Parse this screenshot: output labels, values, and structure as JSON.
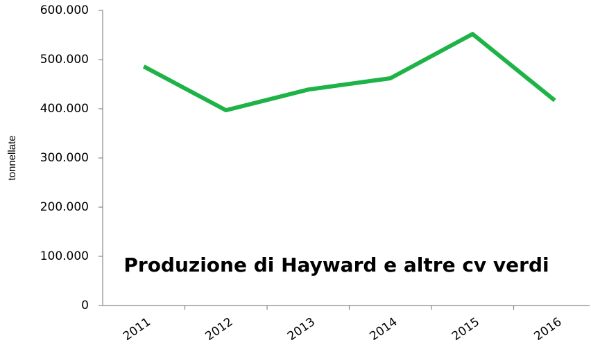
{
  "chart_data": {
    "type": "line",
    "title": "Produzione di Hayward e altre cv verdi",
    "y_label": "tonnellate",
    "categories": [
      "2011",
      "2012",
      "2013",
      "2014",
      "2015",
      "2016"
    ],
    "series": [
      {
        "name": "Produzione",
        "color": "#1db347",
        "values": [
          486000,
          397000,
          439000,
          462000,
          552000,
          417000
        ]
      }
    ],
    "ylim": [
      0,
      600000
    ],
    "yticks": [
      0,
      {
        "value": 100000,
        "label": "100.000"
      },
      {
        "value": 200000,
        "label": "200.000"
      },
      {
        "value": 300000,
        "label": "300.000"
      },
      {
        "value": 400000,
        "label": "400.000"
      },
      {
        "value": 500000,
        "label": "500.000"
      },
      {
        "value": 600000,
        "label": "600.000"
      }
    ]
  }
}
